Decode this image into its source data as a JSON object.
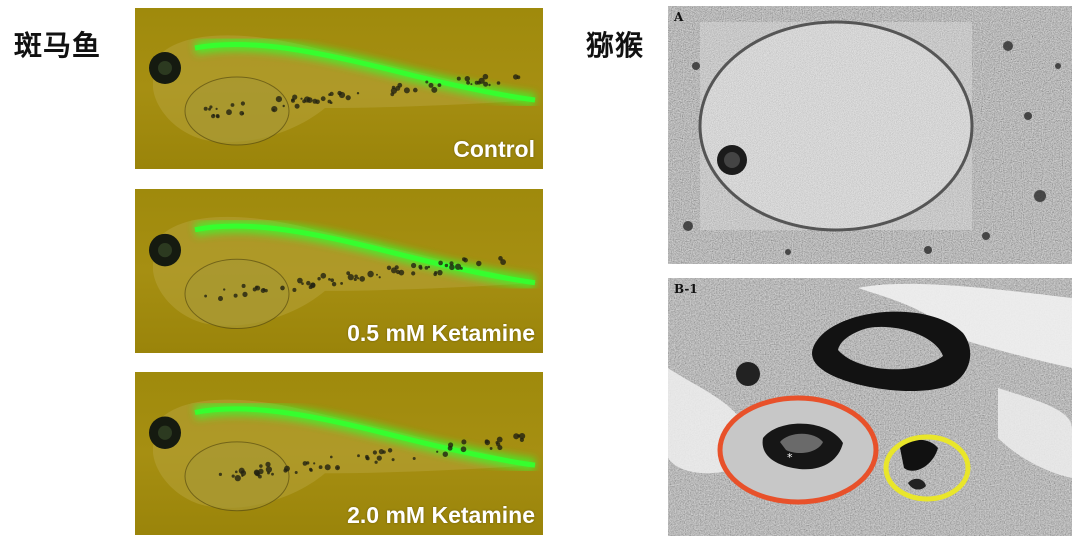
{
  "labels": {
    "zebrafish": "斑马鱼",
    "macaque": "猕猴"
  },
  "zebrafish_panels": [
    {
      "caption": "Control"
    },
    {
      "caption": "0.5 mM Ketamine"
    },
    {
      "caption": "2.0 mM Ketamine"
    }
  ],
  "em_panels": [
    {
      "tag": "A"
    },
    {
      "tag": "B-1"
    }
  ],
  "colors": {
    "fish_background": "#a18b0e",
    "fluorescence": "#35ff2e",
    "circle_red": "#e8512a",
    "circle_yellow": "#e9e62a"
  }
}
